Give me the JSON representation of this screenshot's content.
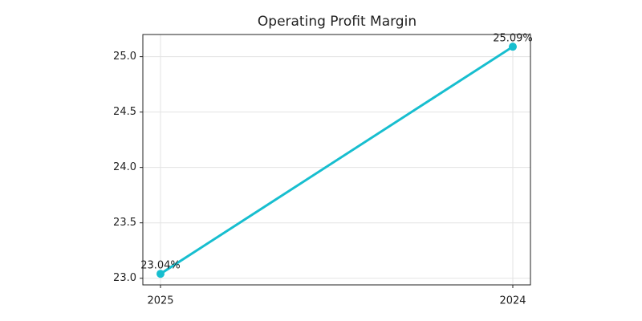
{
  "chart_data": {
    "type": "line",
    "title": "Operating Profit Margin",
    "categories": [
      "2025",
      "2024"
    ],
    "values": [
      23.04,
      25.09
    ],
    "value_labels": [
      "23.04%",
      "25.09%"
    ],
    "color": "#17becf",
    "ylim": [
      22.94,
      25.2
    ],
    "yticks": [
      {
        "value": 23,
        "label": "23.0"
      },
      23.5,
      {
        "value": 24,
        "label": "24.0"
      },
      24.5,
      {
        "value": 25,
        "label": "25.0"
      }
    ],
    "grid": true
  }
}
